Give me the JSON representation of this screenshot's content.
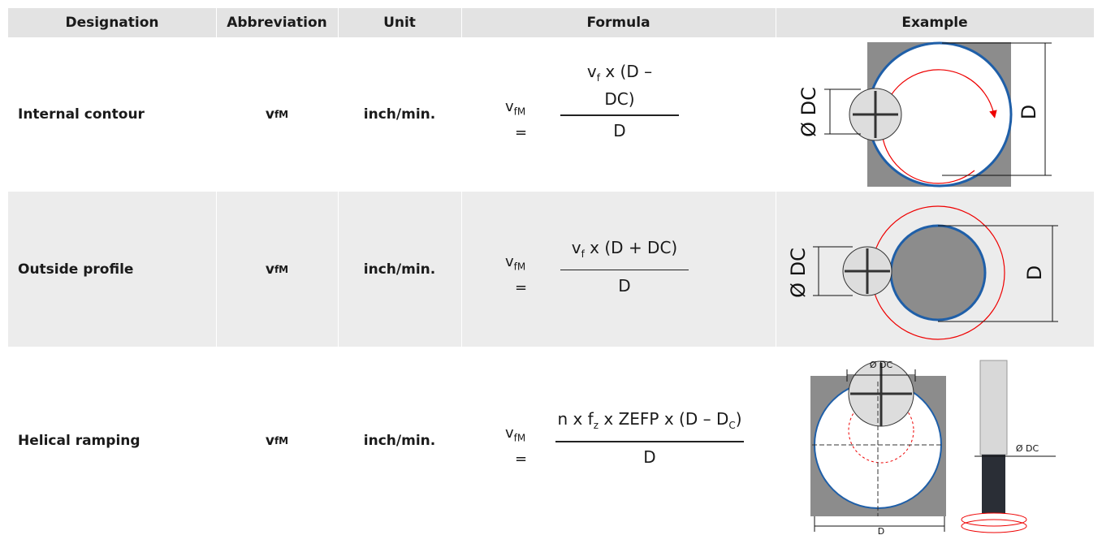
{
  "table": {
    "header": [
      "Designation",
      "Abbreviation",
      "Unit",
      "Formula",
      "Example"
    ],
    "rows": [
      {
        "designation": "Internal contour",
        "abbreviation": {
          "base": "v",
          "sub": "fM"
        },
        "unit": "inch/min.",
        "formula": {
          "lhs": {
            "base": "v",
            "sub": "fM"
          },
          "equals": "=",
          "numerator": [
            {
              "t": "v"
            },
            {
              "sub": "f"
            },
            {
              "t": " x (D –"
            },
            {
              "br": "DC)"
            }
          ],
          "denominator": "D"
        },
        "example": {
          "labels": [
            "Ø DC",
            "D"
          ]
        }
      },
      {
        "designation": "Outside profile",
        "abbreviation": {
          "base": "v",
          "sub": "fM"
        },
        "unit": "inch/min.",
        "formula": {
          "lhs": {
            "base": "v",
            "sub": "fM"
          },
          "equals": "=",
          "numerator": [
            {
              "t": "v"
            },
            {
              "sub": "f"
            },
            {
              "t": " x (D + DC)"
            }
          ],
          "denominator": "D"
        },
        "example": {
          "labels": [
            "Ø DC",
            "D"
          ]
        }
      },
      {
        "designation": "Helical ramping",
        "abbreviation": {
          "base": "v",
          "sub": "fM"
        },
        "unit": "inch/min.",
        "formula": {
          "lhs": {
            "base": "v",
            "sub": "fM"
          },
          "equals": "=",
          "numerator": [
            {
              "t": "n x f"
            },
            {
              "sub": "z"
            },
            {
              "t": " x ZEFP x (D – D"
            },
            {
              "sub": "C"
            },
            {
              "t": ")"
            }
          ],
          "denominator": "D"
        },
        "example": {
          "labels": [
            "Ø DC",
            "Ø DC",
            "D"
          ]
        }
      }
    ]
  }
}
